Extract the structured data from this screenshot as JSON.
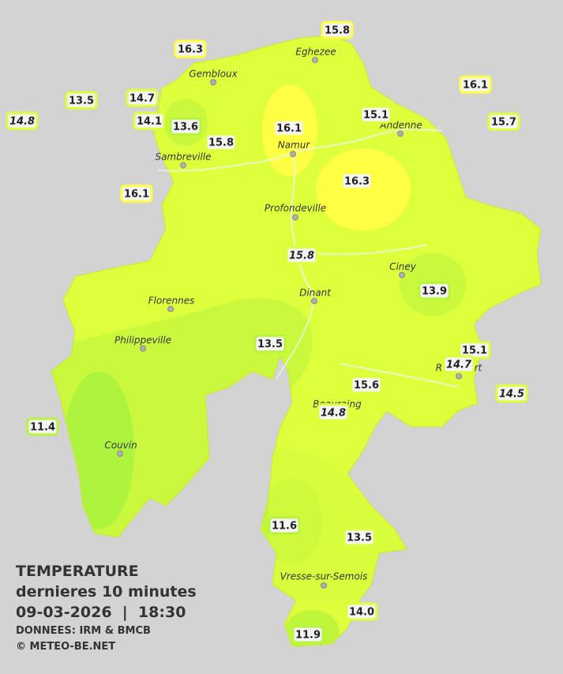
{
  "stations": [
    {
      "value": "16.3"
    },
    {
      "value": "15.8"
    },
    {
      "value": "16.1"
    },
    {
      "value": "13.5"
    },
    {
      "value": "14.7"
    },
    {
      "value": "14.8",
      "italic": true
    },
    {
      "value": "14.1"
    },
    {
      "value": "13.6"
    },
    {
      "value": "15.8"
    },
    {
      "value": "16.1"
    },
    {
      "value": "15.1"
    },
    {
      "value": "15.7"
    },
    {
      "value": "16.3"
    },
    {
      "value": "16.1"
    },
    {
      "value": "15.8",
      "italic": true
    },
    {
      "value": "13.9"
    },
    {
      "value": "13.5"
    },
    {
      "value": "15.1"
    },
    {
      "value": "14.7",
      "italic": true
    },
    {
      "value": "15.6"
    },
    {
      "value": "14.5",
      "italic": true
    },
    {
      "value": "14.8",
      "italic": true
    },
    {
      "value": "11.4"
    },
    {
      "value": "11.6"
    },
    {
      "value": "13.5"
    },
    {
      "value": "14.0"
    },
    {
      "value": "11.9"
    }
  ],
  "cities": [
    {
      "name": "Eghezee"
    },
    {
      "name": "Gembloux"
    },
    {
      "name": "Andenne"
    },
    {
      "name": "Namur"
    },
    {
      "name": "Sambreville"
    },
    {
      "name": "Profondeville"
    },
    {
      "name": "Ciney"
    },
    {
      "name": "Florennes"
    },
    {
      "name": "Dinant"
    },
    {
      "name": "Philippeville"
    },
    {
      "name": "Beauraing"
    },
    {
      "name": "Rochefort"
    },
    {
      "name": "Couvin"
    },
    {
      "name": "Vresse-sur-Semois"
    }
  ],
  "caption": {
    "title": "TEMPERATURE",
    "subtitle": "dernieres 10 minutes",
    "datetime": "09-03-2026  |  18:30",
    "source": "DONNEES: IRM & BMCB",
    "copyright": "© METEO-BE.NET"
  }
}
